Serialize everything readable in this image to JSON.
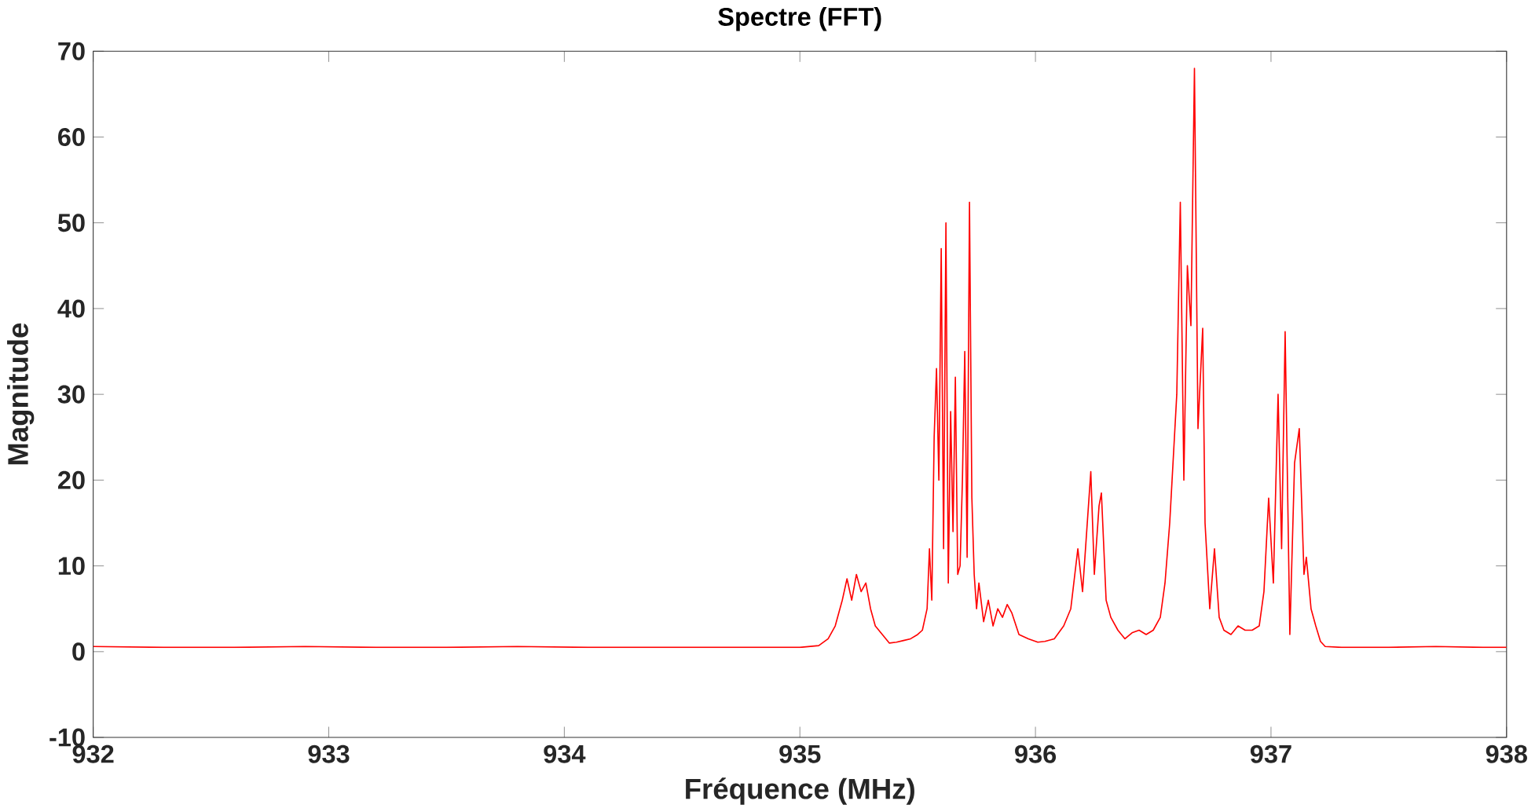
{
  "chart_data": {
    "type": "line",
    "title": "Spectre (FFT)",
    "xlabel": "Fréquence (MHz)",
    "ylabel": "Magnitude",
    "xlim": [
      932,
      938
    ],
    "ylim": [
      -10,
      70
    ],
    "xticks": [
      932,
      933,
      934,
      935,
      936,
      937,
      938
    ],
    "yticks": [
      -10,
      0,
      10,
      20,
      30,
      40,
      50,
      60,
      70
    ],
    "grid": false,
    "marker": "none",
    "line_style": "solid",
    "series": [
      {
        "color": "#ff0000",
        "x": [
          932.0,
          932.3,
          932.6,
          932.9,
          933.2,
          933.5,
          933.8,
          934.1,
          934.4,
          934.7,
          935.0,
          935.08,
          935.12,
          935.15,
          935.18,
          935.2,
          935.22,
          935.24,
          935.26,
          935.28,
          935.3,
          935.32,
          935.35,
          935.38,
          935.41,
          935.44,
          935.47,
          935.5,
          935.52,
          935.54,
          935.55,
          935.56,
          935.57,
          935.58,
          935.59,
          935.6,
          935.61,
          935.62,
          935.63,
          935.64,
          935.65,
          935.66,
          935.67,
          935.68,
          935.69,
          935.7,
          935.71,
          935.72,
          935.73,
          935.74,
          935.75,
          935.76,
          935.78,
          935.8,
          935.82,
          935.84,
          935.86,
          935.88,
          935.9,
          935.93,
          935.97,
          936.01,
          936.04,
          936.08,
          936.12,
          936.15,
          936.18,
          936.2,
          936.22,
          936.235,
          936.25,
          936.27,
          936.28,
          936.3,
          936.32,
          936.35,
          936.38,
          936.41,
          936.44,
          936.47,
          936.5,
          936.53,
          936.55,
          936.57,
          936.59,
          936.6,
          936.615,
          936.63,
          936.645,
          936.66,
          936.675,
          936.69,
          936.71,
          936.72,
          936.74,
          936.76,
          936.78,
          936.8,
          936.83,
          936.86,
          936.89,
          936.92,
          936.95,
          936.97,
          936.99,
          937.01,
          937.03,
          937.045,
          937.06,
          937.08,
          937.1,
          937.12,
          937.14,
          937.15,
          937.17,
          937.19,
          937.21,
          937.23,
          937.3,
          937.5,
          937.7,
          937.9,
          938.0
        ],
        "values": [
          0.6,
          0.5,
          0.5,
          0.6,
          0.5,
          0.5,
          0.6,
          0.5,
          0.5,
          0.5,
          0.5,
          0.7,
          1.5,
          3,
          6,
          8.5,
          6,
          9,
          7,
          8,
          5,
          3,
          2,
          1,
          1.1,
          1.3,
          1.5,
          2,
          2.5,
          5,
          12,
          6,
          25,
          33,
          20,
          47,
          12,
          50,
          8,
          28,
          14,
          32,
          9,
          10,
          20,
          35,
          11,
          52.4,
          18,
          9,
          5,
          8,
          3.5,
          6,
          3,
          5,
          4,
          5.5,
          4.5,
          2,
          1.5,
          1.1,
          1.2,
          1.5,
          3,
          5,
          12,
          7,
          15,
          21,
          9,
          17,
          18.5,
          6,
          4,
          2.5,
          1.5,
          2.2,
          2.5,
          2,
          2.5,
          4,
          8,
          15,
          25,
          30,
          52.4,
          20,
          45,
          38,
          68,
          26,
          37.7,
          15,
          5,
          12,
          4,
          2.5,
          2,
          3,
          2.5,
          2.5,
          3,
          7,
          17.9,
          8,
          30,
          12,
          37.3,
          2,
          22,
          26,
          9,
          11,
          5,
          3,
          1.2,
          0.6,
          0.5,
          0.5,
          0.6,
          0.5,
          0.5
        ]
      }
    ]
  }
}
